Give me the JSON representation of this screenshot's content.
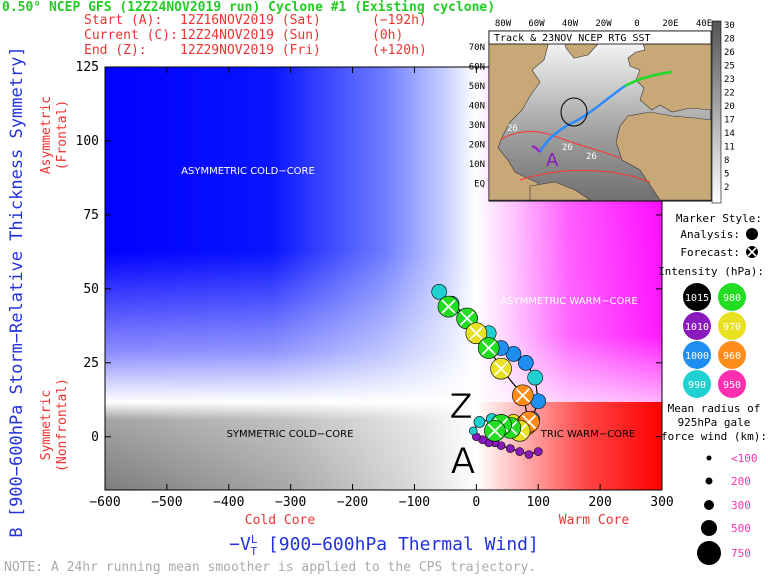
{
  "header": {
    "title": "0.50° NCEP GFS (12Z24NOV2019 run) Cyclone #1 (Existing cyclone)",
    "start_label": "Start (A):",
    "start_time": "12Z16NOV2019 (Sat)",
    "start_offset": "(−192h)",
    "current_label": "Current (C):",
    "current_time": "12Z24NOV2019 (Sun)",
    "current_offset": "(0h)",
    "end_label": "End (Z):",
    "end_time": "12Z29NOV2019 (Fri)",
    "end_offset": "(+120h)"
  },
  "note": "NOTE:  A 24hr running mean smoother is applied to the CPS trajectory.",
  "colors": {
    "header_green": "#22cc22",
    "axis_blue": "#2233dd",
    "axis_red": "#ee3333",
    "cold_asym": "#0000ff",
    "warm_asym": "#ff00ff",
    "warm_sym": "#ff0000",
    "cold_sym": "#888888"
  },
  "chart_data": {
    "type": "scatter",
    "xlabel": "−V_T^L [900−600hPa Thermal Wind]",
    "ylabel": "B [900−600hPa Storm−Relative Thickness Symmetry]",
    "x_tick_labels": [
      "−600",
      "−500",
      "−400",
      "−300",
      "−200",
      "−100",
      "0",
      "100",
      "200",
      "300"
    ],
    "y_tick_labels": [
      "0",
      "25",
      "50",
      "75",
      "100",
      "125"
    ],
    "xlim": [
      -600,
      300
    ],
    "ylim": [
      -18,
      125
    ],
    "x_sublabel_left": "Cold Core",
    "x_sublabel_right": "Warm Core",
    "y_sublabel_top": "Asymmetric (Frontal)",
    "y_sublabel_bottom": "Symmetric (Nonfrontal)",
    "quadrant_labels": {
      "asym_cold": "ASYMMETRIC COLD−CORE",
      "asym_warm": "ASYMMETRIC WARM−CORE",
      "sym_cold": "SYMMETRIC COLD−CORE",
      "sym_warm": "TRIC WARM−CORE"
    },
    "start_marker": "A",
    "end_marker": "Z",
    "trajectory": [
      {
        "x": 100,
        "y": -5,
        "p": 1010,
        "r": 100,
        "f": false
      },
      {
        "x": 85,
        "y": -6,
        "p": 1010,
        "r": 100,
        "f": false
      },
      {
        "x": 70,
        "y": -5,
        "p": 1010,
        "r": 100,
        "f": false
      },
      {
        "x": 55,
        "y": -4,
        "p": 1010,
        "r": 100,
        "f": false
      },
      {
        "x": 40,
        "y": -3,
        "p": 1010,
        "r": 100,
        "f": false
      },
      {
        "x": 30,
        "y": -2,
        "p": 1010,
        "r": 100,
        "f": false
      },
      {
        "x": 20,
        "y": -2,
        "p": 1010,
        "r": 100,
        "f": false
      },
      {
        "x": 10,
        "y": -1,
        "p": 1010,
        "r": 100,
        "f": false
      },
      {
        "x": 0,
        "y": 0,
        "p": 1010,
        "r": 100,
        "f": false
      },
      {
        "x": -5,
        "y": 2,
        "p": 990,
        "r": 100,
        "f": false
      },
      {
        "x": 5,
        "y": 5,
        "p": 990,
        "r": 200,
        "f": false
      },
      {
        "x": 25,
        "y": 6,
        "p": 990,
        "r": 200,
        "f": false
      },
      {
        "x": 40,
        "y": 5,
        "p": 980,
        "r": 300,
        "f": false
      },
      {
        "x": 60,
        "y": 5,
        "p": 970,
        "r": 300,
        "f": false
      },
      {
        "x": 80,
        "y": 4,
        "p": 960,
        "r": 500,
        "f": false
      },
      {
        "x": 90,
        "y": 6,
        "p": 1000,
        "r": 300,
        "f": false
      },
      {
        "x": 100,
        "y": 12,
        "p": 1000,
        "r": 300,
        "f": false
      },
      {
        "x": 95,
        "y": 20,
        "p": 990,
        "r": 300,
        "f": false
      },
      {
        "x": 80,
        "y": 25,
        "p": 1000,
        "r": 300,
        "f": false
      },
      {
        "x": 60,
        "y": 28,
        "p": 1000,
        "r": 300,
        "f": false
      },
      {
        "x": 40,
        "y": 30,
        "p": 1000,
        "r": 300,
        "f": false
      },
      {
        "x": 20,
        "y": 35,
        "p": 990,
        "r": 300,
        "f": false
      },
      {
        "x": -10,
        "y": 40,
        "p": 990,
        "r": 300,
        "f": false
      },
      {
        "x": -40,
        "y": 45,
        "p": 990,
        "r": 300,
        "f": false
      },
      {
        "x": -60,
        "y": 49,
        "p": 990,
        "r": 300,
        "f": false
      },
      {
        "x": -45,
        "y": 44,
        "p": 980,
        "r": 500,
        "f": true
      },
      {
        "x": -15,
        "y": 40,
        "p": 980,
        "r": 500,
        "f": true
      },
      {
        "x": 0,
        "y": 35,
        "p": 970,
        "r": 500,
        "f": true
      },
      {
        "x": 20,
        "y": 30,
        "p": 980,
        "r": 500,
        "f": true
      },
      {
        "x": 40,
        "y": 23,
        "p": 970,
        "r": 500,
        "f": true
      },
      {
        "x": 75,
        "y": 14,
        "p": 960,
        "r": 500,
        "f": true
      },
      {
        "x": 85,
        "y": 5,
        "p": 960,
        "r": 500,
        "f": true
      },
      {
        "x": 70,
        "y": 2,
        "p": 970,
        "r": 500,
        "f": true
      },
      {
        "x": 55,
        "y": 3,
        "p": 980,
        "r": 500,
        "f": true
      },
      {
        "x": 40,
        "y": 4,
        "p": 980,
        "r": 500,
        "f": true
      },
      {
        "x": 30,
        "y": 2,
        "p": 980,
        "r": 500,
        "f": true
      }
    ]
  },
  "inset": {
    "title": "Track & 23NOV NCEP RTG SST",
    "lon_labels": [
      "80W",
      "60W",
      "40W",
      "20W",
      "0",
      "20E",
      "40E"
    ],
    "lat_labels": [
      "70N",
      "60N",
      "50N",
      "40N",
      "30N",
      "20N",
      "10N",
      "EQ"
    ],
    "sst_labels": [
      "26",
      "26",
      "26"
    ],
    "colorbar": [
      "30",
      "28",
      "26",
      "25",
      "23",
      "22",
      "20",
      "17",
      "14",
      "11",
      "8",
      "5",
      "2"
    ]
  },
  "legend": {
    "marker_style_title": "Marker Style:",
    "analysis_label": "Analysis:",
    "forecast_label": "Forecast:",
    "intensity_title": "Intensity (hPa):",
    "intensity": [
      {
        "value": "1015",
        "color": "#000000",
        "text_color": "#ffffff"
      },
      {
        "value": "980",
        "color": "#22dd22",
        "text_color": "#ffffff"
      },
      {
        "value": "1010",
        "color": "#8a1abe",
        "text_color": "#ffffff"
      },
      {
        "value": "970",
        "color": "#e8e020",
        "text_color": "#ffffff"
      },
      {
        "value": "1000",
        "color": "#1e8ff0",
        "text_color": "#ffffff"
      },
      {
        "value": "960",
        "color": "#ff8c1a",
        "text_color": "#ffffff"
      },
      {
        "value": "990",
        "color": "#20d0d0",
        "text_color": "#ffffff"
      },
      {
        "value": "950",
        "color": "#ff30b0",
        "text_color": "#ffffff"
      }
    ],
    "radius_title_1": "Mean radius of",
    "radius_title_2": "925hPa gale",
    "radius_title_3": "force wind (km):",
    "radius": [
      {
        "label": "<100",
        "km": 100
      },
      {
        "label": "200",
        "km": 200
      },
      {
        "label": "300",
        "km": 300
      },
      {
        "label": "500",
        "km": 500
      },
      {
        "label": "750",
        "km": 750
      }
    ]
  }
}
